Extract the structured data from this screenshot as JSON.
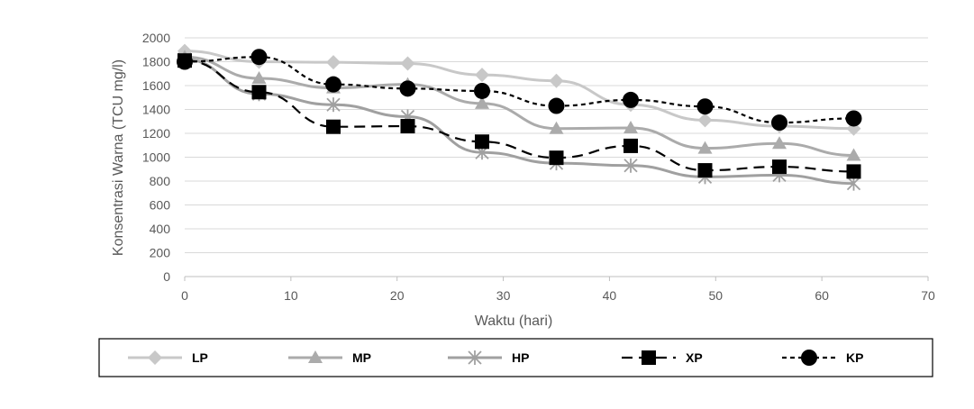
{
  "chart_data": {
    "type": "line",
    "title": "",
    "xlabel": "Waktu (hari)",
    "ylabel": "Konsentrasi Warna (TCU mg/l)",
    "xlim": [
      0,
      70
    ],
    "ylim": [
      0,
      2000
    ],
    "x_ticks": [
      0,
      10,
      20,
      30,
      40,
      50,
      60,
      70
    ],
    "y_ticks": [
      0,
      200,
      400,
      600,
      800,
      1000,
      1200,
      1400,
      1600,
      1800,
      2000
    ],
    "grid": "horizontal",
    "legend_position": "bottom",
    "x": [
      0,
      7,
      14,
      21,
      28,
      35,
      42,
      49,
      56,
      63
    ],
    "series": [
      {
        "name": "LP",
        "color": "#c8c8c8",
        "dash": "solid",
        "marker": "diamond",
        "values": [
          1890,
          1800,
          1795,
          1785,
          1690,
          1640,
          1440,
          1310,
          1260,
          1240
        ]
      },
      {
        "name": "MP",
        "color": "#ababab",
        "dash": "solid",
        "marker": "triangle",
        "values": [
          1840,
          1660,
          1580,
          1610,
          1450,
          1240,
          1245,
          1075,
          1115,
          1015
        ]
      },
      {
        "name": "HP",
        "color": "#a0a0a0",
        "dash": "solid",
        "marker": "star",
        "values": [
          1820,
          1530,
          1440,
          1340,
          1040,
          950,
          930,
          835,
          850,
          780
        ]
      },
      {
        "name": "XP",
        "color": "#000000",
        "dash": "dashed",
        "marker": "square",
        "values": [
          1810,
          1545,
          1255,
          1260,
          1130,
          995,
          1095,
          890,
          920,
          880
        ]
      },
      {
        "name": "KP",
        "color": "#000000",
        "dash": "dotted",
        "marker": "circle",
        "values": [
          1800,
          1840,
          1610,
          1575,
          1555,
          1430,
          1480,
          1425,
          1290,
          1325
        ]
      }
    ]
  }
}
